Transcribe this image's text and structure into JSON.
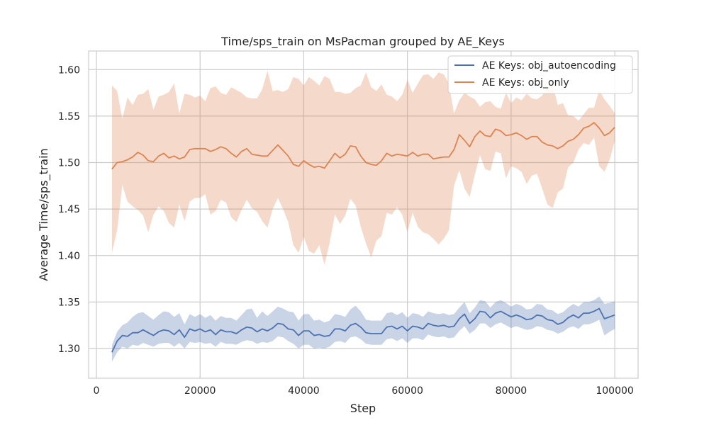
{
  "chart_data": {
    "type": "line",
    "title": "Time/sps_train on MsPacman grouped by AE_Keys",
    "xlabel": "Step",
    "ylabel": "Average Time/sps_train",
    "xlim": [
      -1500,
      104500
    ],
    "ylim": [
      1.268,
      1.62
    ],
    "xticks": [
      0,
      20000,
      40000,
      60000,
      80000,
      100000
    ],
    "xtick_labels": [
      "0",
      "20000",
      "40000",
      "60000",
      "80000",
      "100000"
    ],
    "yticks": [
      1.3,
      1.35,
      1.4,
      1.45,
      1.5,
      1.55,
      1.6
    ],
    "ytick_labels": [
      "1.30",
      "1.35",
      "1.40",
      "1.45",
      "1.50",
      "1.55",
      "1.60"
    ],
    "grid": true,
    "legend": "top-right",
    "x": [
      3000,
      4000,
      5000,
      6000,
      7000,
      8000,
      9000,
      10000,
      11000,
      12000,
      13000,
      14000,
      15000,
      16000,
      17000,
      18000,
      19000,
      20000,
      21000,
      22000,
      23000,
      24000,
      25000,
      26000,
      27000,
      28000,
      29000,
      30000,
      31000,
      32000,
      33000,
      34000,
      35000,
      36000,
      37000,
      38000,
      39000,
      40000,
      41000,
      42000,
      43000,
      44000,
      45000,
      46000,
      47000,
      48000,
      49000,
      50000,
      51000,
      52000,
      53000,
      54000,
      55000,
      56000,
      57000,
      58000,
      59000,
      60000,
      61000,
      62000,
      63000,
      64000,
      65000,
      66000,
      67000,
      68000,
      69000,
      70000,
      71000,
      72000,
      73000,
      74000,
      75000,
      76000,
      77000,
      78000,
      79000,
      80000,
      81000,
      82000,
      83000,
      84000,
      85000,
      86000,
      87000,
      88000,
      89000,
      90000,
      91000,
      92000,
      93000,
      94000,
      95000,
      96000,
      97000,
      98000,
      99000,
      100000
    ],
    "series": [
      {
        "name": "AE Keys: obj_autoencoding",
        "color": "#4c72b0",
        "band_color": "#4c72b0",
        "values": [
          1.296,
          1.308,
          1.314,
          1.313,
          1.317,
          1.317,
          1.32,
          1.317,
          1.314,
          1.318,
          1.32,
          1.319,
          1.315,
          1.32,
          1.312,
          1.321,
          1.319,
          1.321,
          1.318,
          1.32,
          1.315,
          1.32,
          1.318,
          1.318,
          1.316,
          1.32,
          1.323,
          1.322,
          1.318,
          1.321,
          1.319,
          1.322,
          1.327,
          1.326,
          1.321,
          1.32,
          1.314,
          1.319,
          1.319,
          1.314,
          1.315,
          1.313,
          1.314,
          1.321,
          1.321,
          1.319,
          1.325,
          1.327,
          1.323,
          1.317,
          1.316,
          1.316,
          1.316,
          1.323,
          1.324,
          1.321,
          1.324,
          1.319,
          1.324,
          1.323,
          1.321,
          1.327,
          1.325,
          1.324,
          1.325,
          1.323,
          1.324,
          1.332,
          1.337,
          1.327,
          1.332,
          1.34,
          1.339,
          1.333,
          1.338,
          1.34,
          1.337,
          1.334,
          1.336,
          1.334,
          1.331,
          1.332,
          1.336,
          1.335,
          1.331,
          1.33,
          1.326,
          1.328,
          1.333,
          1.336,
          1.333,
          1.338,
          1.338,
          1.34,
          1.343,
          1.332,
          1.334,
          1.336
        ],
        "lower": [
          1.286,
          1.296,
          1.302,
          1.3,
          1.304,
          1.303,
          1.306,
          1.304,
          1.302,
          1.305,
          1.306,
          1.306,
          1.302,
          1.306,
          1.3,
          1.307,
          1.306,
          1.307,
          1.305,
          1.306,
          1.302,
          1.307,
          1.305,
          1.305,
          1.304,
          1.307,
          1.309,
          1.308,
          1.305,
          1.307,
          1.306,
          1.308,
          1.313,
          1.312,
          1.308,
          1.305,
          1.3,
          1.304,
          1.304,
          1.3,
          1.301,
          1.3,
          1.302,
          1.307,
          1.308,
          1.306,
          1.312,
          1.313,
          1.31,
          1.305,
          1.304,
          1.304,
          1.304,
          1.31,
          1.311,
          1.308,
          1.311,
          1.306,
          1.311,
          1.311,
          1.309,
          1.315,
          1.313,
          1.312,
          1.313,
          1.311,
          1.312,
          1.319,
          1.324,
          1.316,
          1.32,
          1.327,
          1.327,
          1.322,
          1.326,
          1.328,
          1.325,
          1.322,
          1.324,
          1.322,
          1.32,
          1.321,
          1.324,
          1.323,
          1.32,
          1.319,
          1.316,
          1.318,
          1.322,
          1.324,
          1.321,
          1.326,
          1.326,
          1.328,
          1.331,
          1.314,
          1.318,
          1.321
        ],
        "upper": [
          1.304,
          1.318,
          1.325,
          1.328,
          1.334,
          1.338,
          1.339,
          1.335,
          1.331,
          1.336,
          1.34,
          1.339,
          1.334,
          1.338,
          1.326,
          1.337,
          1.334,
          1.337,
          1.333,
          1.336,
          1.33,
          1.335,
          1.333,
          1.333,
          1.33,
          1.336,
          1.342,
          1.343,
          1.333,
          1.34,
          1.335,
          1.34,
          1.345,
          1.343,
          1.34,
          1.339,
          1.33,
          1.337,
          1.337,
          1.33,
          1.331,
          1.328,
          1.33,
          1.337,
          1.336,
          1.334,
          1.342,
          1.346,
          1.34,
          1.331,
          1.33,
          1.33,
          1.33,
          1.338,
          1.339,
          1.336,
          1.339,
          1.333,
          1.338,
          1.337,
          1.334,
          1.34,
          1.338,
          1.337,
          1.338,
          1.336,
          1.337,
          1.344,
          1.35,
          1.338,
          1.344,
          1.352,
          1.351,
          1.344,
          1.35,
          1.352,
          1.349,
          1.345,
          1.348,
          1.346,
          1.342,
          1.343,
          1.348,
          1.347,
          1.342,
          1.341,
          1.337,
          1.339,
          1.344,
          1.348,
          1.345,
          1.35,
          1.35,
          1.352,
          1.356,
          1.348,
          1.349,
          1.351
        ]
      },
      {
        "name": "AE Keys: obj_only",
        "color": "#dd8452",
        "band_color": "#dd8452",
        "values": [
          1.493,
          1.5,
          1.501,
          1.503,
          1.506,
          1.511,
          1.508,
          1.502,
          1.501,
          1.507,
          1.51,
          1.505,
          1.507,
          1.504,
          1.506,
          1.514,
          1.515,
          1.515,
          1.515,
          1.512,
          1.514,
          1.517,
          1.515,
          1.51,
          1.506,
          1.512,
          1.515,
          1.509,
          1.508,
          1.507,
          1.507,
          1.513,
          1.519,
          1.513,
          1.507,
          1.498,
          1.496,
          1.502,
          1.498,
          1.495,
          1.496,
          1.494,
          1.502,
          1.51,
          1.505,
          1.509,
          1.518,
          1.517,
          1.507,
          1.5,
          1.498,
          1.497,
          1.502,
          1.51,
          1.507,
          1.509,
          1.508,
          1.507,
          1.511,
          1.507,
          1.509,
          1.509,
          1.504,
          1.505,
          1.506,
          1.506,
          1.514,
          1.53,
          1.524,
          1.517,
          1.528,
          1.534,
          1.529,
          1.528,
          1.536,
          1.534,
          1.529,
          1.53,
          1.532,
          1.529,
          1.525,
          1.528,
          1.528,
          1.522,
          1.519,
          1.518,
          1.515,
          1.518,
          1.523,
          1.525,
          1.53,
          1.537,
          1.539,
          1.543,
          1.537,
          1.529,
          1.532,
          1.538
        ],
        "lower": [
          1.403,
          1.427,
          1.476,
          1.458,
          1.453,
          1.449,
          1.443,
          1.425,
          1.444,
          1.453,
          1.448,
          1.435,
          1.43,
          1.455,
          1.437,
          1.458,
          1.462,
          1.462,
          1.466,
          1.444,
          1.448,
          1.46,
          1.457,
          1.441,
          1.436,
          1.449,
          1.46,
          1.451,
          1.447,
          1.437,
          1.43,
          1.45,
          1.462,
          1.45,
          1.436,
          1.411,
          1.403,
          1.42,
          1.405,
          1.402,
          1.411,
          1.39,
          1.414,
          1.444,
          1.434,
          1.443,
          1.461,
          1.454,
          1.431,
          1.413,
          1.398,
          1.416,
          1.421,
          1.446,
          1.444,
          1.452,
          1.444,
          1.425,
          1.446,
          1.431,
          1.425,
          1.423,
          1.418,
          1.412,
          1.418,
          1.427,
          1.475,
          1.492,
          1.472,
          1.463,
          1.487,
          1.508,
          1.493,
          1.491,
          1.512,
          1.51,
          1.483,
          1.496,
          1.494,
          1.49,
          1.477,
          1.486,
          1.488,
          1.472,
          1.455,
          1.451,
          1.468,
          1.472,
          1.495,
          1.5,
          1.514,
          1.521,
          1.519,
          1.527,
          1.496,
          1.49,
          1.503,
          1.523
        ],
        "upper": [
          1.583,
          1.577,
          1.547,
          1.57,
          1.562,
          1.573,
          1.574,
          1.579,
          1.557,
          1.571,
          1.573,
          1.576,
          1.585,
          1.553,
          1.574,
          1.573,
          1.57,
          1.572,
          1.566,
          1.58,
          1.582,
          1.575,
          1.573,
          1.581,
          1.578,
          1.575,
          1.57,
          1.569,
          1.569,
          1.579,
          1.599,
          1.577,
          1.578,
          1.576,
          1.579,
          1.592,
          1.59,
          1.583,
          1.592,
          1.588,
          1.583,
          1.593,
          1.59,
          1.576,
          1.576,
          1.574,
          1.575,
          1.58,
          1.583,
          1.597,
          1.581,
          1.577,
          1.584,
          1.573,
          1.571,
          1.566,
          1.573,
          1.589,
          1.575,
          1.585,
          1.594,
          1.595,
          1.59,
          1.597,
          1.595,
          1.585,
          1.553,
          1.567,
          1.575,
          1.571,
          1.568,
          1.56,
          1.565,
          1.566,
          1.56,
          1.558,
          1.575,
          1.564,
          1.57,
          1.567,
          1.574,
          1.569,
          1.568,
          1.572,
          1.582,
          1.584,
          1.562,
          1.564,
          1.551,
          1.55,
          1.545,
          1.552,
          1.559,
          1.559,
          1.578,
          1.568,
          1.561,
          1.553
        ]
      }
    ]
  }
}
